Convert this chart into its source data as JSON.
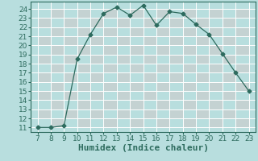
{
  "x": [
    7,
    8,
    9,
    10,
    11,
    12,
    13,
    14,
    15,
    16,
    17,
    18,
    19,
    20,
    21,
    22,
    23
  ],
  "y": [
    11,
    11,
    11.2,
    18.5,
    21.2,
    23.5,
    24.2,
    23.3,
    24.4,
    22.2,
    23.7,
    23.5,
    22.3,
    21.2,
    19.1,
    17.0,
    15.0
  ],
  "xlabel": "Humidex (Indice chaleur)",
  "xlim": [
    6.5,
    23.5
  ],
  "ylim": [
    10.5,
    24.8
  ],
  "xticks": [
    7,
    8,
    9,
    10,
    11,
    12,
    13,
    14,
    15,
    16,
    17,
    18,
    19,
    20,
    21,
    22,
    23
  ],
  "yticks": [
    11,
    12,
    13,
    14,
    15,
    16,
    17,
    18,
    19,
    20,
    21,
    22,
    23,
    24
  ],
  "line_color": "#2d6b5e",
  "marker": "D",
  "marker_size": 2.5,
  "bg_color": "#b8dede",
  "grid_major_color": "#ffffff",
  "grid_minor_color": "#c8d8d8",
  "xlabel_fontsize": 8,
  "tick_fontsize": 6.5,
  "tick_color": "#2d6b5e",
  "spine_color": "#2d6b5e"
}
